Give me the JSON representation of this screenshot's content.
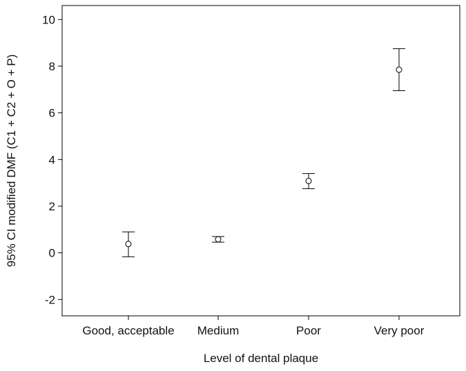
{
  "chart_data": {
    "type": "errorbar",
    "title": "",
    "xlabel": "Level of dental plaque",
    "ylabel": "95% CI modified DMF (C1 + C2 + O + P)",
    "categories": [
      "Good, acceptable",
      "Medium",
      "Poor",
      "Very poor"
    ],
    "series": [
      {
        "mean": [
          0.38,
          0.58,
          3.08,
          7.85
        ],
        "lower": [
          -0.17,
          0.46,
          2.75,
          6.95
        ],
        "upper": [
          0.9,
          0.7,
          3.4,
          8.75
        ]
      }
    ],
    "ylim": [
      -2.7,
      10.6
    ],
    "yticks": [
      -2,
      0,
      2,
      4,
      6,
      8,
      10
    ],
    "ytick_labels": [
      "-2",
      "0",
      "2",
      "4",
      "6",
      "8",
      "10"
    ],
    "grid": false,
    "colors": {
      "line": "#000000",
      "text": "#111111"
    }
  }
}
